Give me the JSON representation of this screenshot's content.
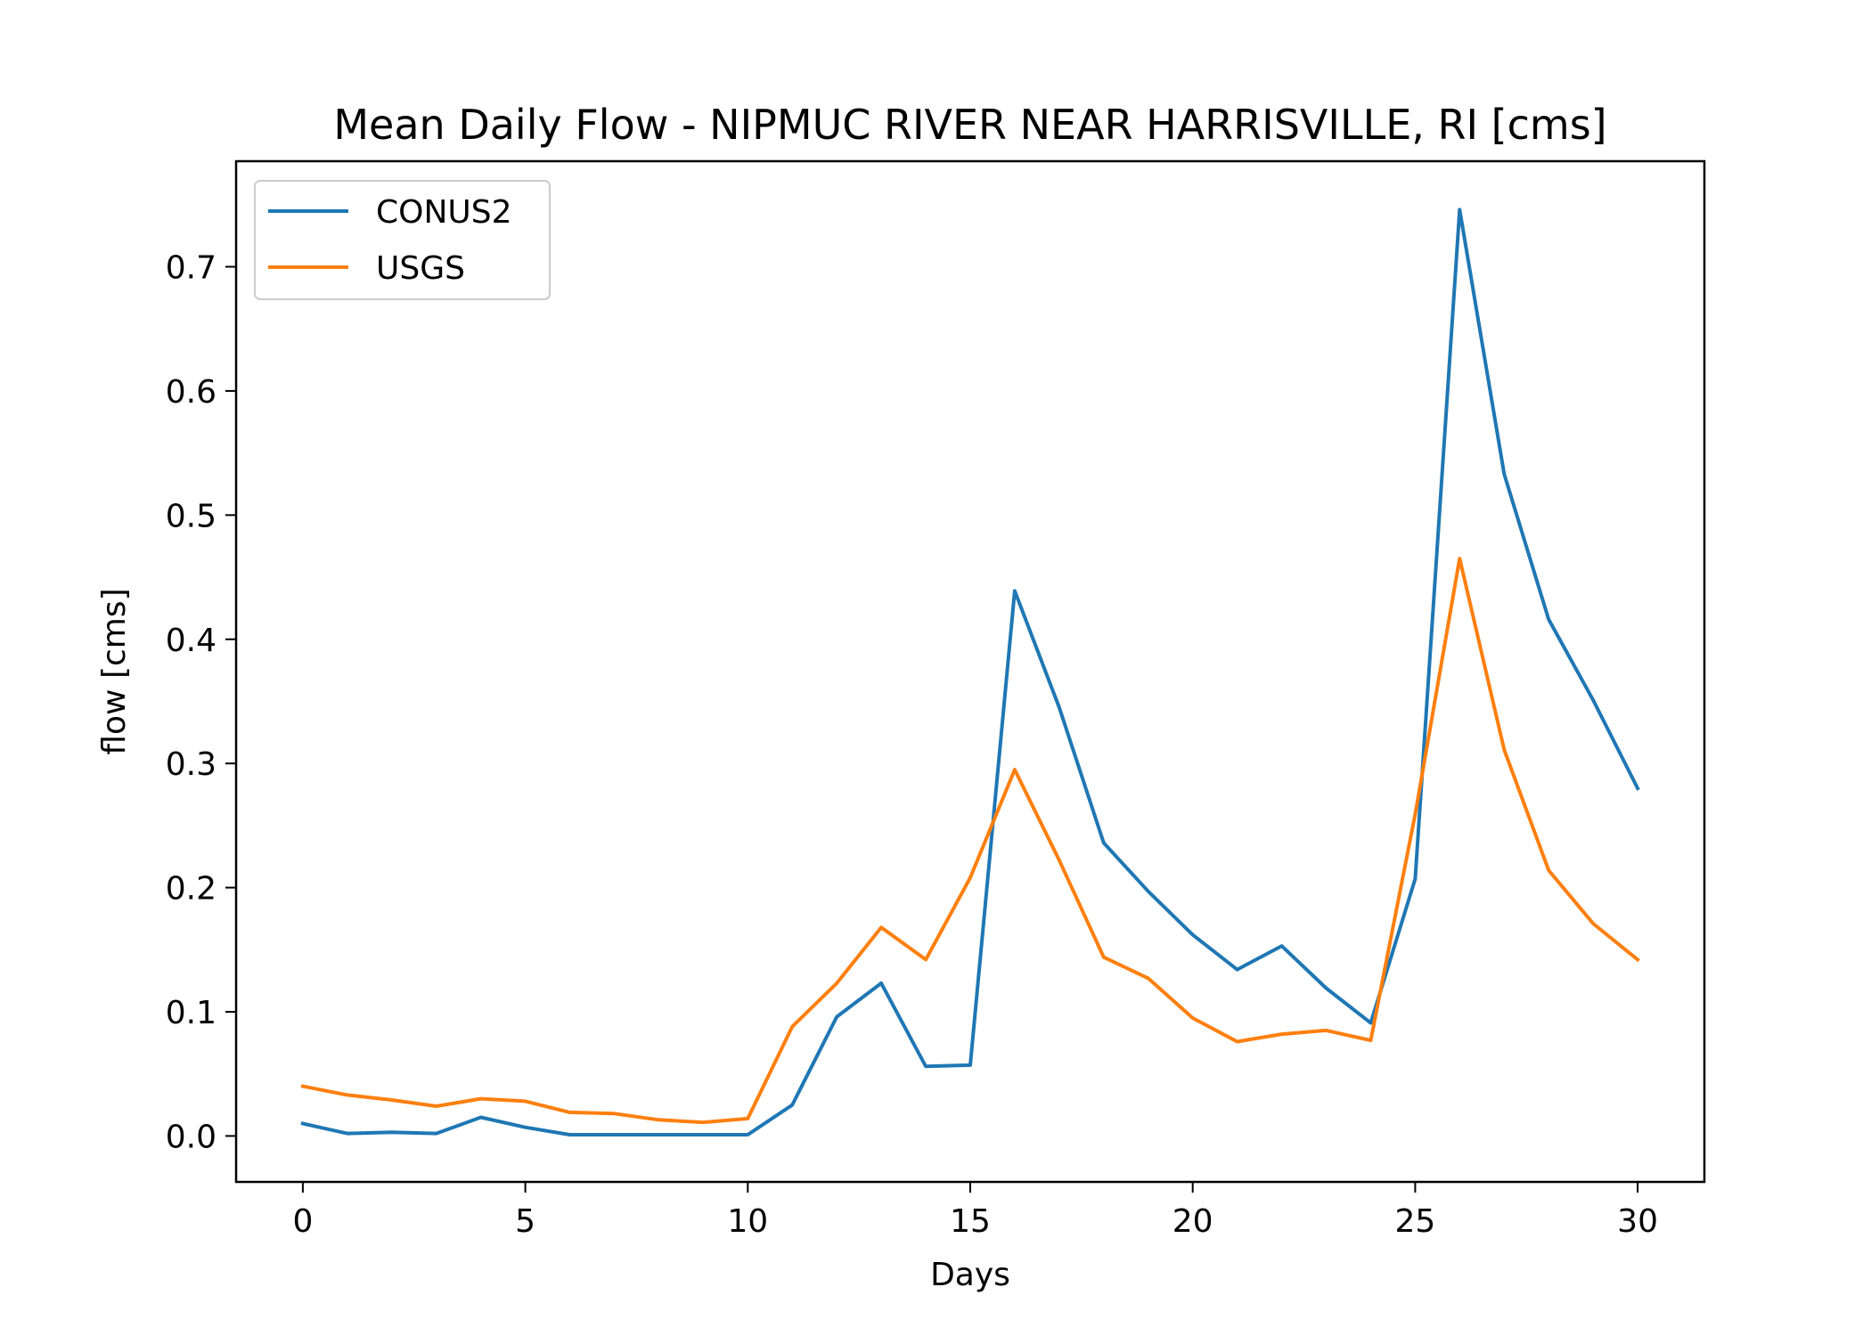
{
  "chart_data": {
    "type": "line",
    "title": "Mean Daily Flow - NIPMUC RIVER NEAR HARRISVILLE, RI [cms]",
    "xlabel": "Days",
    "ylabel": "flow [cms]",
    "xlim": [
      -1.5,
      31.5
    ],
    "ylim": [
      -0.037,
      0.785
    ],
    "xticks": [
      0,
      5,
      10,
      15,
      20,
      25,
      30
    ],
    "xtick_labels": [
      "0",
      "5",
      "10",
      "15",
      "20",
      "25",
      "30"
    ],
    "yticks": [
      0.0,
      0.1,
      0.2,
      0.3,
      0.4,
      0.5,
      0.6,
      0.7
    ],
    "ytick_labels": [
      "0.0",
      "0.1",
      "0.2",
      "0.3",
      "0.4",
      "0.5",
      "0.6",
      "0.7"
    ],
    "grid": false,
    "legend_position": "top-left",
    "x": [
      0,
      1,
      2,
      3,
      4,
      5,
      6,
      7,
      8,
      9,
      10,
      11,
      12,
      13,
      14,
      15,
      16,
      17,
      18,
      19,
      20,
      21,
      22,
      23,
      24,
      25,
      26,
      27,
      28,
      29,
      30
    ],
    "series": [
      {
        "name": "CONUS2",
        "color": "#1f77b4",
        "values": [
          0.01,
          0.002,
          0.003,
          0.002,
          0.015,
          0.007,
          0.001,
          0.001,
          0.001,
          0.001,
          0.001,
          0.025,
          0.096,
          0.123,
          0.056,
          0.057,
          0.439,
          0.345,
          0.236,
          0.197,
          0.162,
          0.134,
          0.153,
          0.119,
          0.091,
          0.207,
          0.746,
          0.533,
          0.416,
          0.351,
          0.28
        ]
      },
      {
        "name": "USGS",
        "color": "#ff7f0e",
        "values": [
          0.04,
          0.033,
          0.029,
          0.024,
          0.03,
          0.028,
          0.019,
          0.018,
          0.013,
          0.011,
          0.014,
          0.088,
          0.123,
          0.168,
          0.142,
          0.208,
          0.295,
          0.222,
          0.144,
          0.127,
          0.095,
          0.076,
          0.082,
          0.085,
          0.077,
          0.259,
          0.465,
          0.311,
          0.214,
          0.171,
          0.142
        ]
      }
    ]
  }
}
